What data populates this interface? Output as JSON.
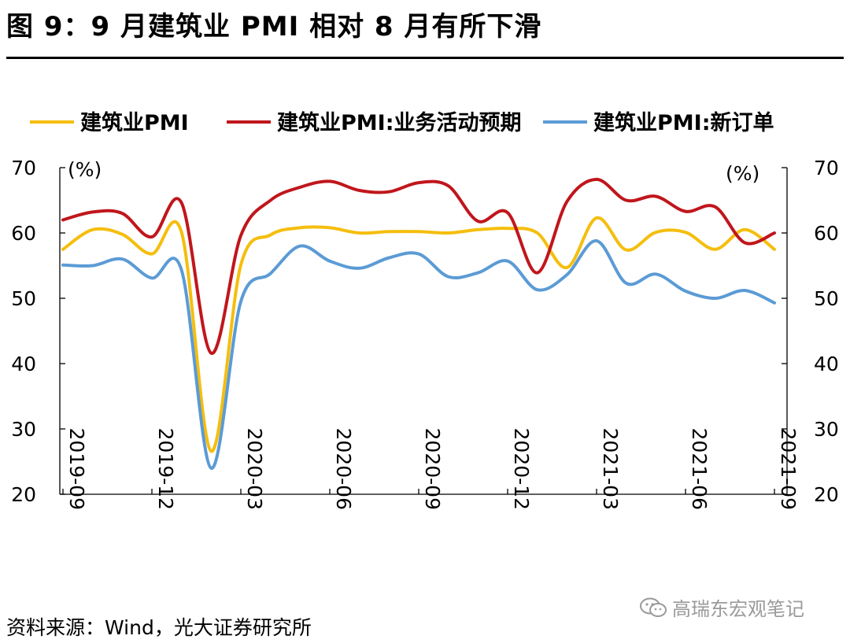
{
  "title": "图 9：9 月建筑业 PMI 相对 8 月有所下滑",
  "source": "资料来源：Wind，光大证券研究所",
  "watermark": "高瑞东宏观笔记",
  "chart_data": {
    "type": "line",
    "title": "",
    "left_unit": "(%)",
    "right_unit": "(%)",
    "ylim": [
      20,
      70
    ],
    "y_ticks": [
      20,
      30,
      40,
      50,
      60,
      70
    ],
    "grid": false,
    "legend_position": "top",
    "x_tick_labels": [
      "2019-09",
      "2019-12",
      "2020-03",
      "2020-06",
      "2020-09",
      "2020-12",
      "2021-03",
      "2021-06",
      "2021-09"
    ],
    "x": [
      "2019-09",
      "2019-10",
      "2019-11",
      "2019-12",
      "2020-01",
      "2020-02",
      "2020-03",
      "2020-04",
      "2020-05",
      "2020-06",
      "2020-07",
      "2020-08",
      "2020-09",
      "2020-10",
      "2020-11",
      "2020-12",
      "2021-01",
      "2021-02",
      "2021-03",
      "2021-04",
      "2021-05",
      "2021-06",
      "2021-07",
      "2021-08",
      "2021-09"
    ],
    "series": [
      {
        "name": "建筑业PMI",
        "color": "#F5BE0E",
        "values": [
          57.5,
          60.5,
          59.8,
          56.8,
          60.1,
          26.6,
          55.1,
          59.7,
          60.8,
          60.8,
          60.0,
          60.2,
          60.2,
          60.0,
          60.5,
          60.7,
          60.0,
          54.7,
          62.3,
          57.4,
          60.1,
          60.1,
          57.5,
          60.5,
          57.5
        ]
      },
      {
        "name": "建筑业PMI:业务活动预期",
        "color": "#C0161C",
        "values": [
          62.0,
          63.2,
          63.0,
          59.4,
          64.6,
          41.6,
          59.6,
          65.0,
          67.0,
          67.9,
          66.5,
          66.3,
          67.7,
          67.2,
          61.8,
          63.1,
          53.9,
          64.8,
          68.2,
          65.0,
          65.6,
          63.3,
          64.0,
          58.5,
          60.0
        ]
      },
      {
        "name": "建筑业PMI:新订单",
        "color": "#5B9BD5",
        "values": [
          55.1,
          55.0,
          56.0,
          53.1,
          54.3,
          24.0,
          49.5,
          53.8,
          58.0,
          55.7,
          54.6,
          56.2,
          56.8,
          53.3,
          53.9,
          55.7,
          51.3,
          53.6,
          58.8,
          52.3,
          53.7,
          51.1,
          50.0,
          51.2,
          49.3
        ]
      }
    ]
  }
}
